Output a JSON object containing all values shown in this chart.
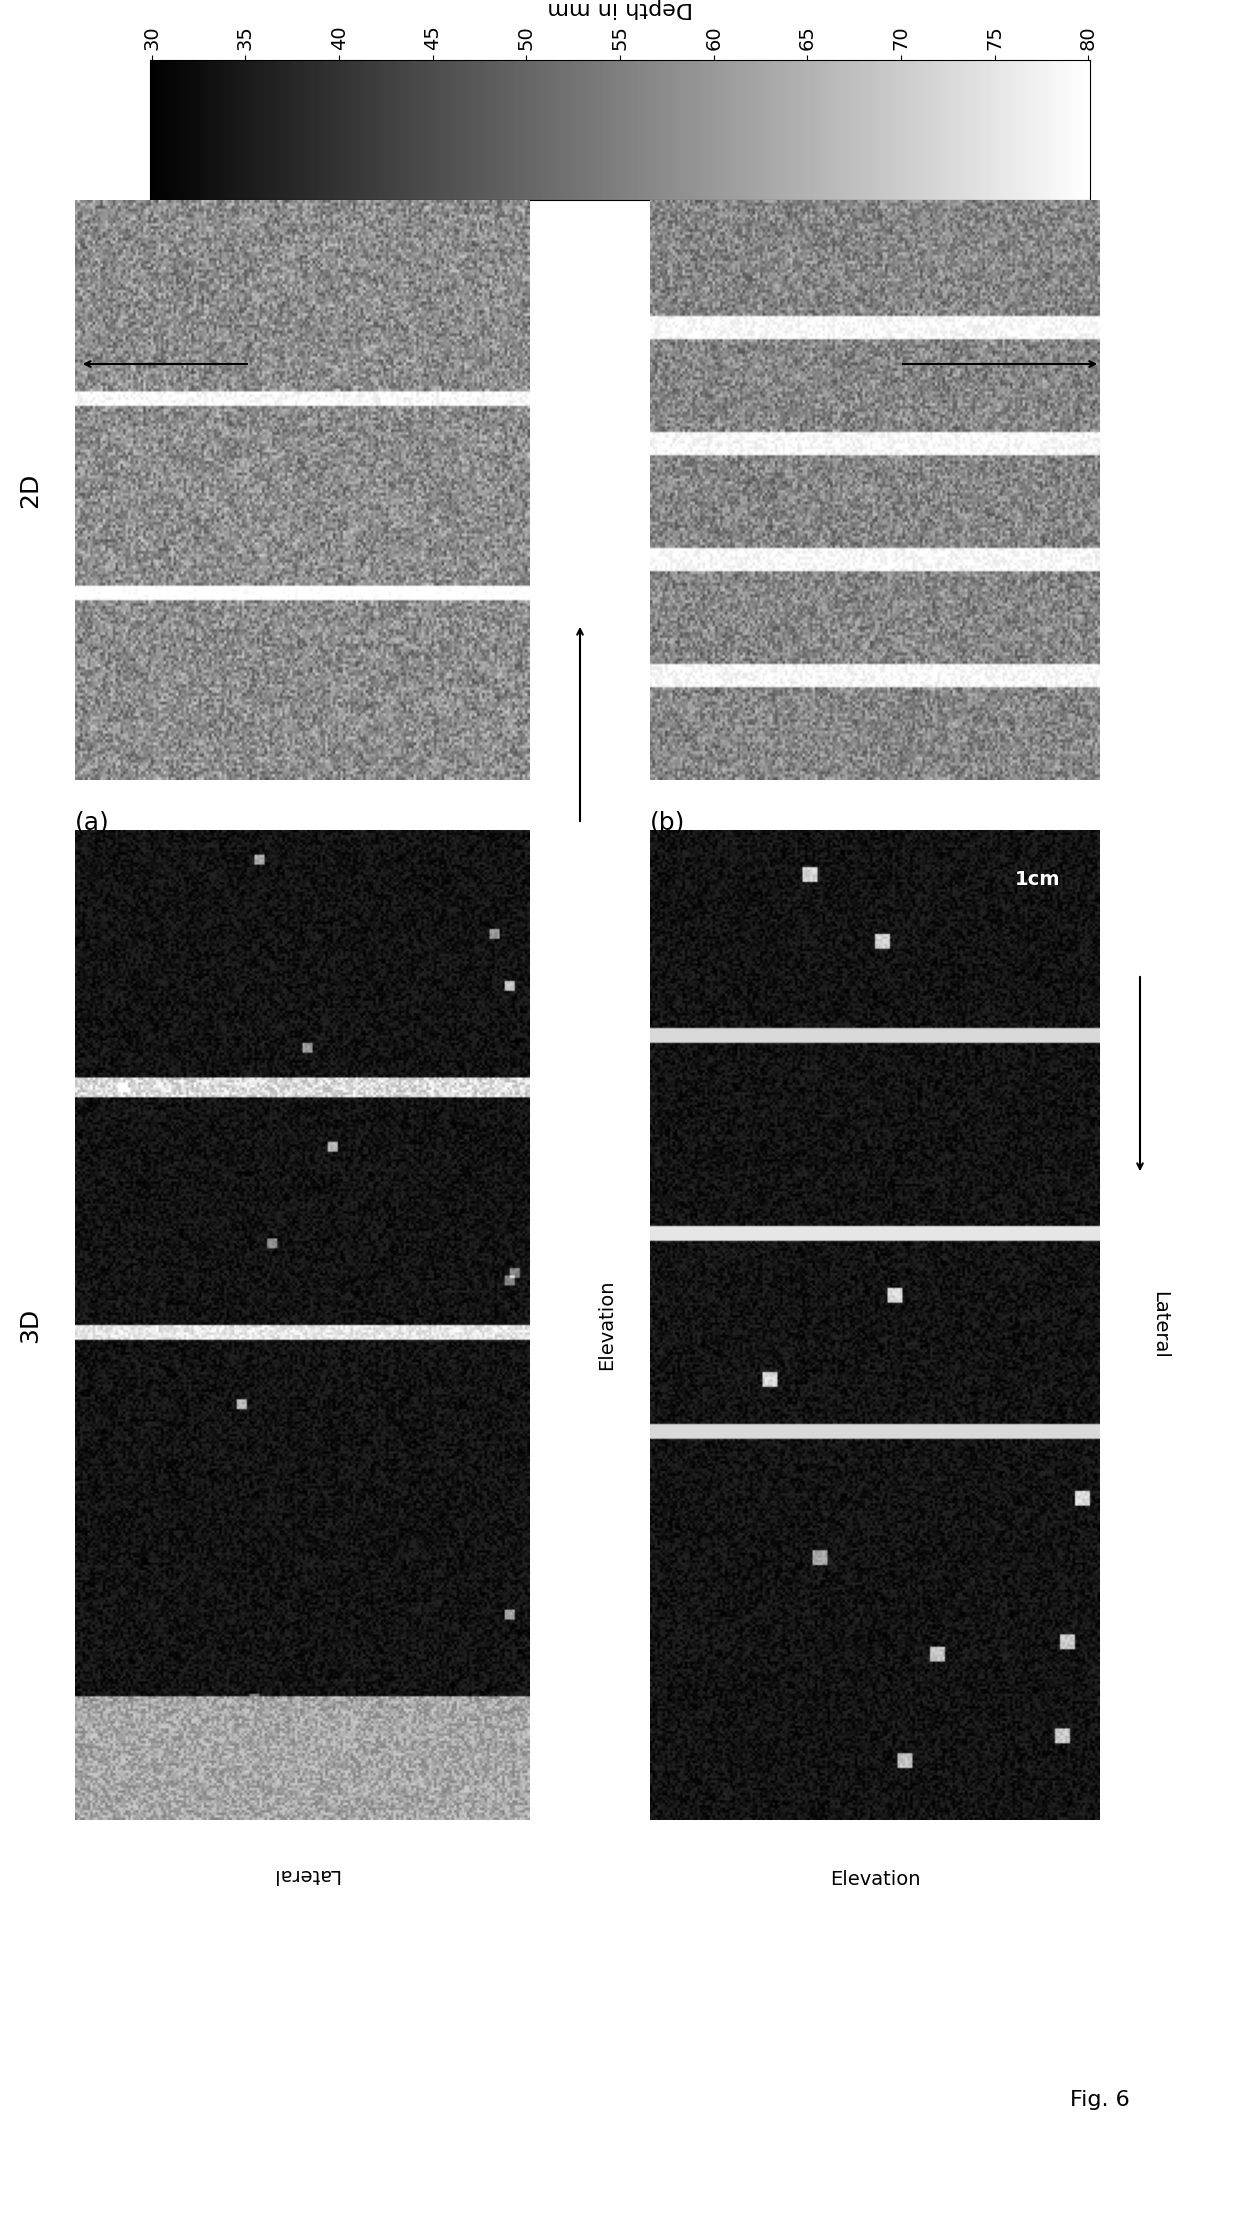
{
  "title": "Fig. 6",
  "colorbar_label": "Depth in mm",
  "colorbar_ticks": [
    "30",
    "35",
    "40",
    "45",
    "50",
    "55",
    "60",
    "65",
    "70",
    "75",
    "80"
  ],
  "label_a": "(a)",
  "label_b": "(b)",
  "label_2d": "2D",
  "label_3d": "3D",
  "label_lateral": "Lateral",
  "label_elevation": "Elevation",
  "scale_bar_text": "1cm",
  "bg_color": "#ffffff",
  "fig_width": 12.4,
  "fig_height": 22.24
}
